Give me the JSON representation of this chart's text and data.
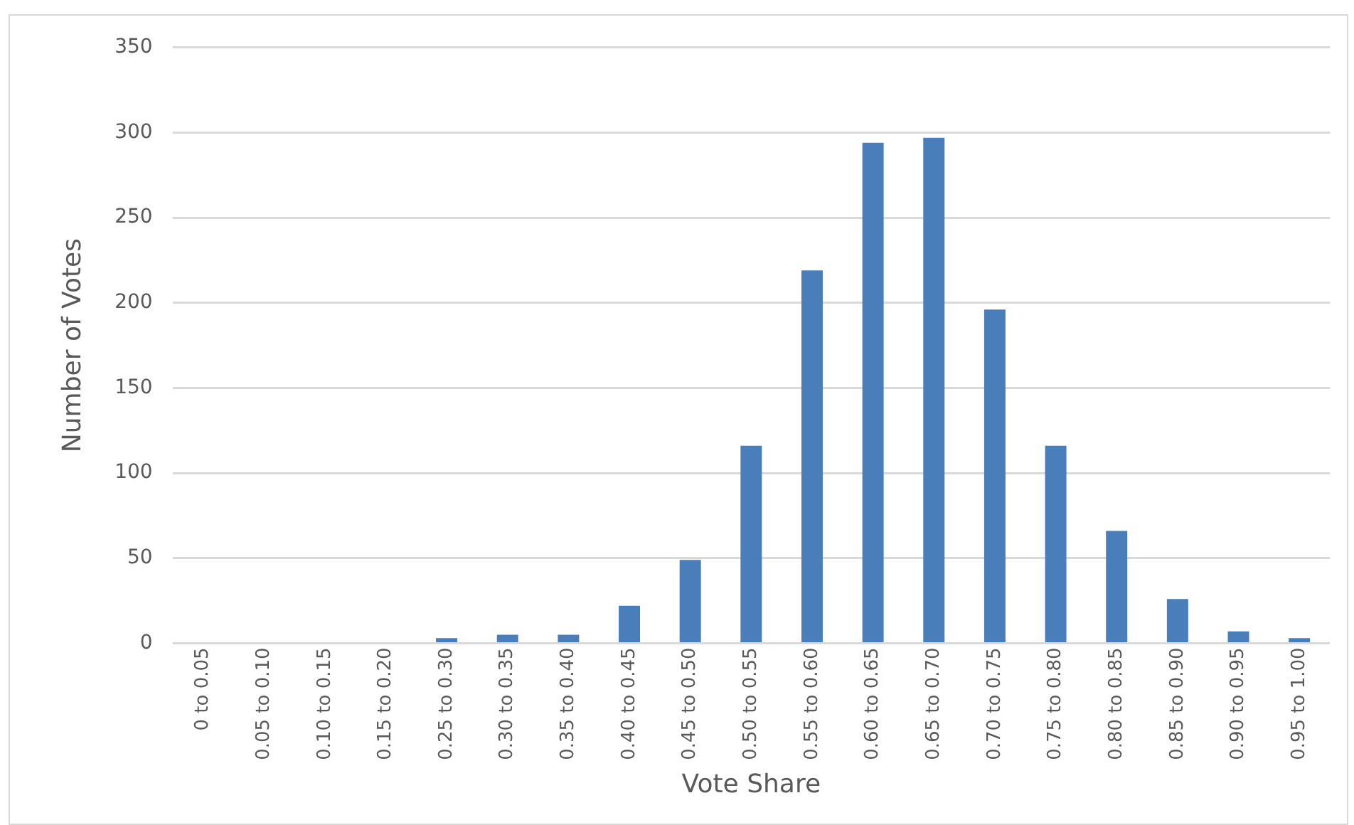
{
  "chart_data": {
    "type": "bar",
    "xlabel": "Vote Share",
    "ylabel": "Number of Votes",
    "categories": [
      "0 to 0.05",
      "0.05 to 0.10",
      "0.10 to 0.15",
      "0.15 to 0.20",
      "0.25 to 0.30",
      "0.30 to 0.35",
      "0.35 to 0.40",
      "0.40 to 0.45",
      "0.45 to 0.50",
      "0.50 to 0.55",
      "0.55 to 0.60",
      "0.60 to 0.65",
      "0.65 to 0.70",
      "0.70 to 0.75",
      "0.75 to 0.80",
      "0.80 to 0.85",
      "0.85 to 0.90",
      "0.90 to 0.95",
      "0.95 to 1.00"
    ],
    "values": [
      0,
      0,
      0,
      0,
      3,
      5,
      5,
      22,
      49,
      116,
      219,
      294,
      297,
      196,
      116,
      66,
      26,
      7,
      3
    ],
    "color": "#4a7ebb",
    "ylim": [
      0,
      350
    ],
    "yticks": [
      0,
      50,
      100,
      150,
      200,
      250,
      300,
      350
    ],
    "grid": "y",
    "legend": false
  }
}
